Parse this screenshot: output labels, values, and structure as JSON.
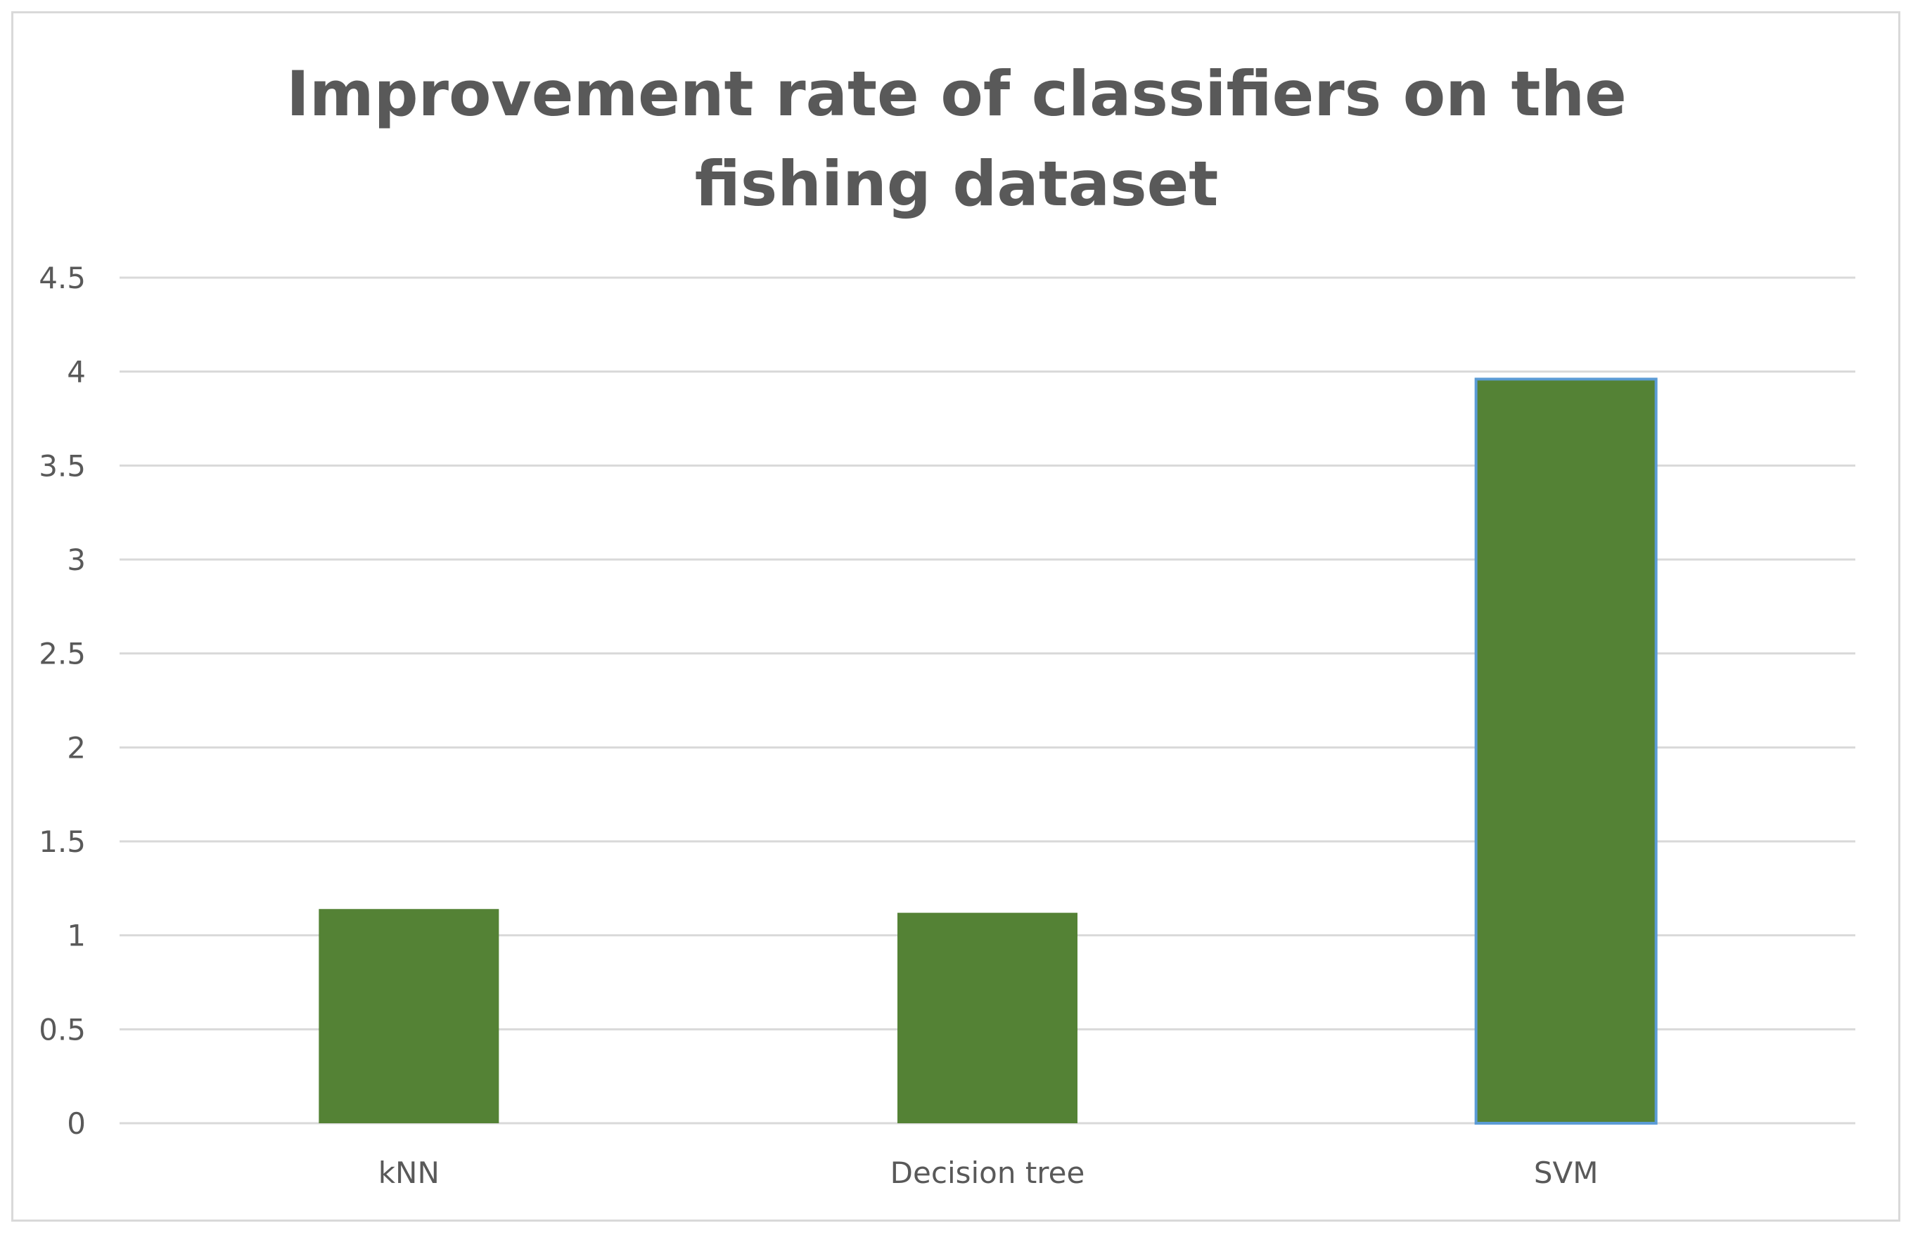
{
  "chart_data": {
    "type": "bar",
    "title": "Improvement rate of classifiers on the fishing dataset",
    "categories": [
      "kNN",
      "Decision tree",
      "SVM"
    ],
    "values": [
      1.14,
      1.12,
      3.96
    ],
    "ylim": [
      0,
      4.5
    ],
    "yticks": [
      "0",
      "0.5",
      "1",
      "1.5",
      "2",
      "2.5",
      "3",
      "3.5",
      "4",
      "4.5"
    ],
    "ytick_values": [
      0,
      0.5,
      1,
      1.5,
      2,
      2.5,
      3,
      3.5,
      4,
      4.5
    ],
    "xlabel": "",
    "ylabel": "",
    "grid": true,
    "legend": "none",
    "colors": {
      "bar": "#548235",
      "bar_highlight_outline": "#5b9bd5",
      "grid": "#d9d9d9",
      "text": "#595959"
    }
  }
}
